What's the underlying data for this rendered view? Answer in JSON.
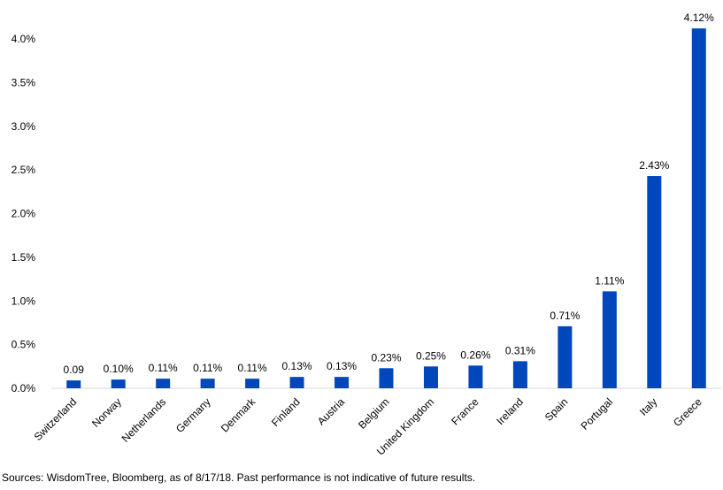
{
  "chart_data": {
    "type": "bar",
    "categories": [
      "Switzerland",
      "Norway",
      "Netherlands",
      "Germany",
      "Denmark",
      "Finland",
      "Austria",
      "Belgium",
      "United Kingdom",
      "France",
      "Ireland",
      "Spain",
      "Portugal",
      "Italy",
      "Greece"
    ],
    "values": [
      0.09,
      0.1,
      0.11,
      0.11,
      0.11,
      0.13,
      0.13,
      0.23,
      0.25,
      0.26,
      0.31,
      0.71,
      1.11,
      2.43,
      4.12
    ],
    "data_labels": [
      "0.09",
      "0.10%",
      "0.11%",
      "0.11%",
      "0.11%",
      "0.13%",
      "0.13%",
      "0.23%",
      "0.25%",
      "0.26%",
      "0.31%",
      "0.71%",
      "1.11%",
      "2.43%",
      "4.12%"
    ],
    "y_ticks": [
      "0.0%",
      "0.5%",
      "1.0%",
      "1.5%",
      "2.0%",
      "2.5%",
      "3.0%",
      "3.5%",
      "4.0%"
    ],
    "ylim": [
      0,
      4.0
    ],
    "grid": false,
    "bar_color": "#0047BB",
    "title": "",
    "xlabel": "",
    "ylabel": ""
  },
  "source_note": "Sources: WisdomTree, Bloomberg, as of 8/17/18. Past performance is not indicative of future results."
}
